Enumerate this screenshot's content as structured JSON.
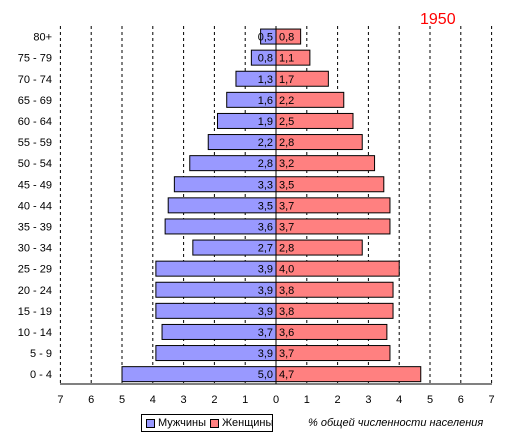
{
  "chart_data": {
    "type": "bar",
    "subtype": "population-pyramid",
    "title": "1950",
    "xlabel": "% общей численности населения",
    "categories": [
      "80+",
      "75 - 79",
      "70 - 74",
      "65 - 69",
      "60 - 64",
      "55 - 59",
      "50 - 54",
      "45 - 49",
      "40 - 44",
      "35 - 39",
      "30 - 34",
      "25 - 29",
      "20 - 24",
      "15 - 19",
      "10 - 14",
      "5 - 9",
      "0 - 4"
    ],
    "series": [
      {
        "name": "Мужчины",
        "color": "#9999ff",
        "values": [
          0.5,
          0.8,
          1.3,
          1.6,
          1.9,
          2.2,
          2.8,
          3.3,
          3.5,
          3.6,
          2.7,
          3.9,
          3.9,
          3.9,
          3.7,
          3.9,
          5.0
        ],
        "labels": [
          "0,5",
          "0,8",
          "1,3",
          "1,6",
          "1,9",
          "2,2",
          "2,8",
          "3,3",
          "3,5",
          "3,6",
          "2,7",
          "3,9",
          "3,9",
          "3,9",
          "3,7",
          "3,9",
          "5,0"
        ]
      },
      {
        "name": "Женщины",
        "color": "#ff8080",
        "values": [
          0.8,
          1.1,
          1.7,
          2.2,
          2.5,
          2.8,
          3.2,
          3.5,
          3.7,
          3.7,
          2.8,
          4.0,
          3.8,
          3.8,
          3.6,
          3.7,
          4.7
        ],
        "labels": [
          "0,8",
          "1,1",
          "1,7",
          "2,2",
          "2,5",
          "2,8",
          "3,2",
          "3,5",
          "3,7",
          "3,7",
          "2,8",
          "4,0",
          "3,8",
          "3,8",
          "3,6",
          "3,7",
          "4,7"
        ]
      }
    ],
    "xticks": [
      "7",
      "6",
      "5",
      "4",
      "3",
      "2",
      "1",
      "0",
      "1",
      "2",
      "3",
      "4",
      "5",
      "6",
      "7"
    ],
    "xlim": [
      -7,
      7
    ],
    "grid": "vertical dashed",
    "legend": "bottom",
    "title_color": "#ff0000"
  }
}
